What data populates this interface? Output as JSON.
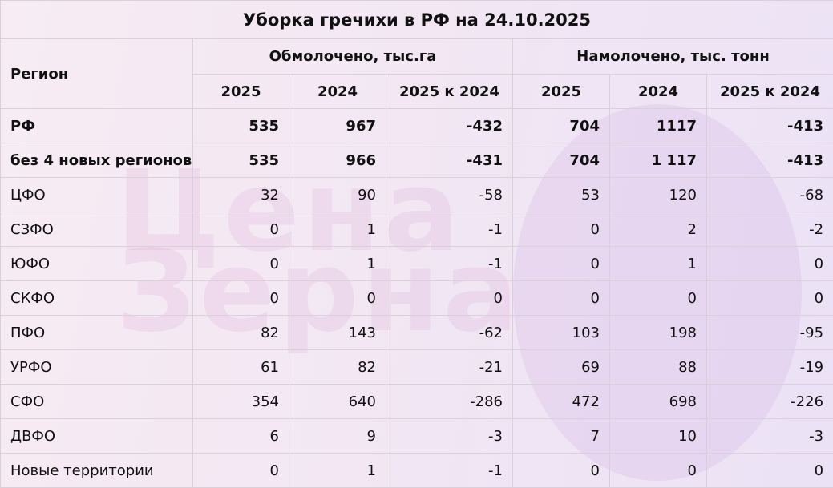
{
  "title": "Уборка гречихи в РФ на 24.10.2025",
  "watermark": [
    "Цена",
    "Зерна"
  ],
  "header": {
    "region": "Регион",
    "groups": [
      "Обмолочено, тыс.га",
      "Намолочено, тыс. тонн"
    ],
    "columns": [
      "2025",
      "2024",
      "2025 к 2024",
      "2025",
      "2024",
      "2025 к 2024"
    ]
  },
  "table": {
    "rows": [
      [
        "РФ",
        "535",
        "967",
        "-432",
        "704",
        "1117",
        "-413"
      ],
      [
        "без 4 новых регионов",
        "535",
        "966",
        "-431",
        "704",
        "1 117",
        "-413"
      ],
      [
        "ЦФО",
        "32",
        "90",
        "-58",
        "53",
        "120",
        "-68"
      ],
      [
        "СЗФО",
        "0",
        "1",
        "-1",
        "0",
        "2",
        "-2"
      ],
      [
        "ЮФО",
        "0",
        "1",
        "-1",
        "0",
        "1",
        "0"
      ],
      [
        "СКФО",
        "0",
        "0",
        "0",
        "0",
        "0",
        "0"
      ],
      [
        "ПФО",
        "82",
        "143",
        "-62",
        "103",
        "198",
        "-95"
      ],
      [
        "УРФО",
        "61",
        "82",
        "-21",
        "69",
        "88",
        "-19"
      ],
      [
        "СФО",
        "354",
        "640",
        "-286",
        "472",
        "698",
        "-226"
      ],
      [
        "ДВФО",
        "6",
        "9",
        "-3",
        "7",
        "10",
        "-3"
      ],
      [
        "Новые территории",
        "0",
        "1",
        "-1",
        "0",
        "0",
        "0"
      ]
    ]
  }
}
